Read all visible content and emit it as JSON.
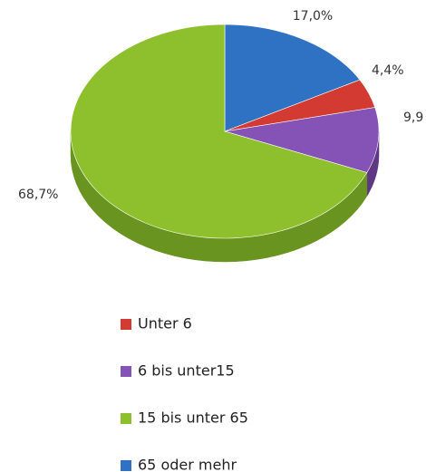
{
  "chart_data": {
    "type": "pie3d",
    "categories": [
      "Unter 6",
      "6 bis unter15",
      "15 bis unter 65",
      "65 oder mehr"
    ],
    "values": [
      4.4,
      9.9,
      68.7,
      17.0
    ],
    "value_labels": [
      "4,4%",
      "9,9",
      "68,7%",
      "17,0%"
    ],
    "colors": [
      "#d23a32",
      "#8552b5",
      "#8dc02c",
      "#2f72c4"
    ],
    "side_colors": [
      "#9e2520",
      "#5e3785",
      "#6a9420",
      "#1f4f8f"
    ]
  }
}
